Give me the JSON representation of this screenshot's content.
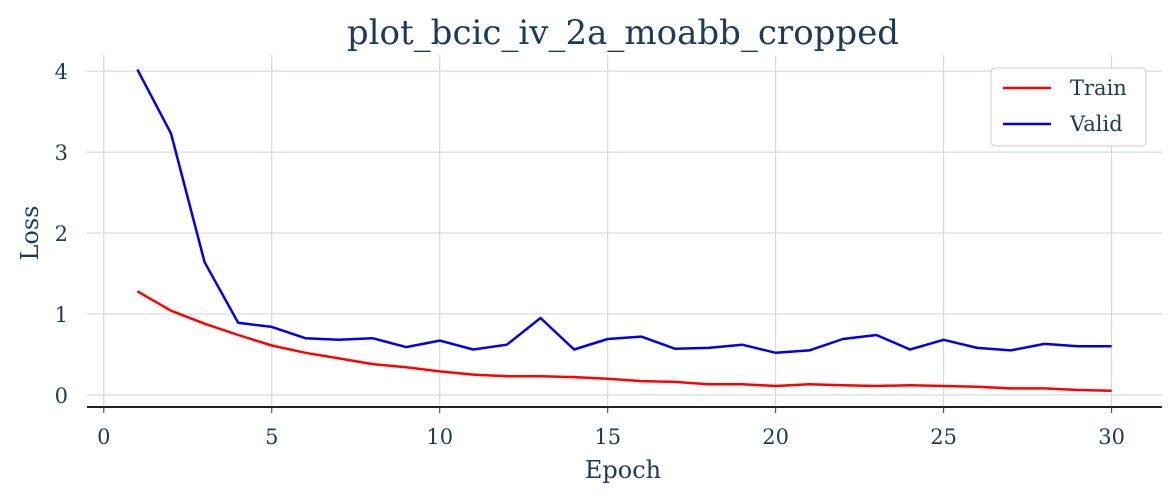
{
  "chart_data": {
    "type": "line",
    "title": "plot_bcic_iv_2a_moabb_cropped",
    "xlabel": "Epoch",
    "ylabel": "Loss",
    "xlim": [
      -0.5,
      31.5
    ],
    "ylim": [
      -0.15,
      4.2
    ],
    "xticks": [
      0,
      5,
      10,
      15,
      20,
      25,
      30
    ],
    "yticks": [
      0,
      1,
      2,
      3,
      4
    ],
    "grid": true,
    "legend_position": "top-right",
    "x": [
      1,
      2,
      3,
      4,
      5,
      6,
      7,
      8,
      9,
      10,
      11,
      12,
      13,
      14,
      15,
      16,
      17,
      18,
      19,
      20,
      21,
      22,
      23,
      24,
      25,
      26,
      27,
      28,
      29,
      30
    ],
    "series": [
      {
        "name": "Train",
        "color": "#ff0000",
        "values": [
          1.28,
          1.04,
          0.88,
          0.74,
          0.61,
          0.52,
          0.45,
          0.38,
          0.34,
          0.29,
          0.25,
          0.23,
          0.23,
          0.22,
          0.2,
          0.17,
          0.16,
          0.13,
          0.13,
          0.11,
          0.13,
          0.12,
          0.11,
          0.12,
          0.11,
          0.1,
          0.08,
          0.08,
          0.06,
          0.05
        ]
      },
      {
        "name": "Valid",
        "color": "#0000ee",
        "values": [
          4.02,
          3.23,
          1.64,
          0.89,
          0.84,
          0.7,
          0.68,
          0.7,
          0.59,
          0.67,
          0.56,
          0.62,
          0.95,
          0.56,
          0.69,
          0.72,
          0.57,
          0.58,
          0.62,
          0.52,
          0.55,
          0.69,
          0.74,
          0.56,
          0.68,
          0.58,
          0.55,
          0.63,
          0.6,
          0.6
        ]
      }
    ]
  }
}
